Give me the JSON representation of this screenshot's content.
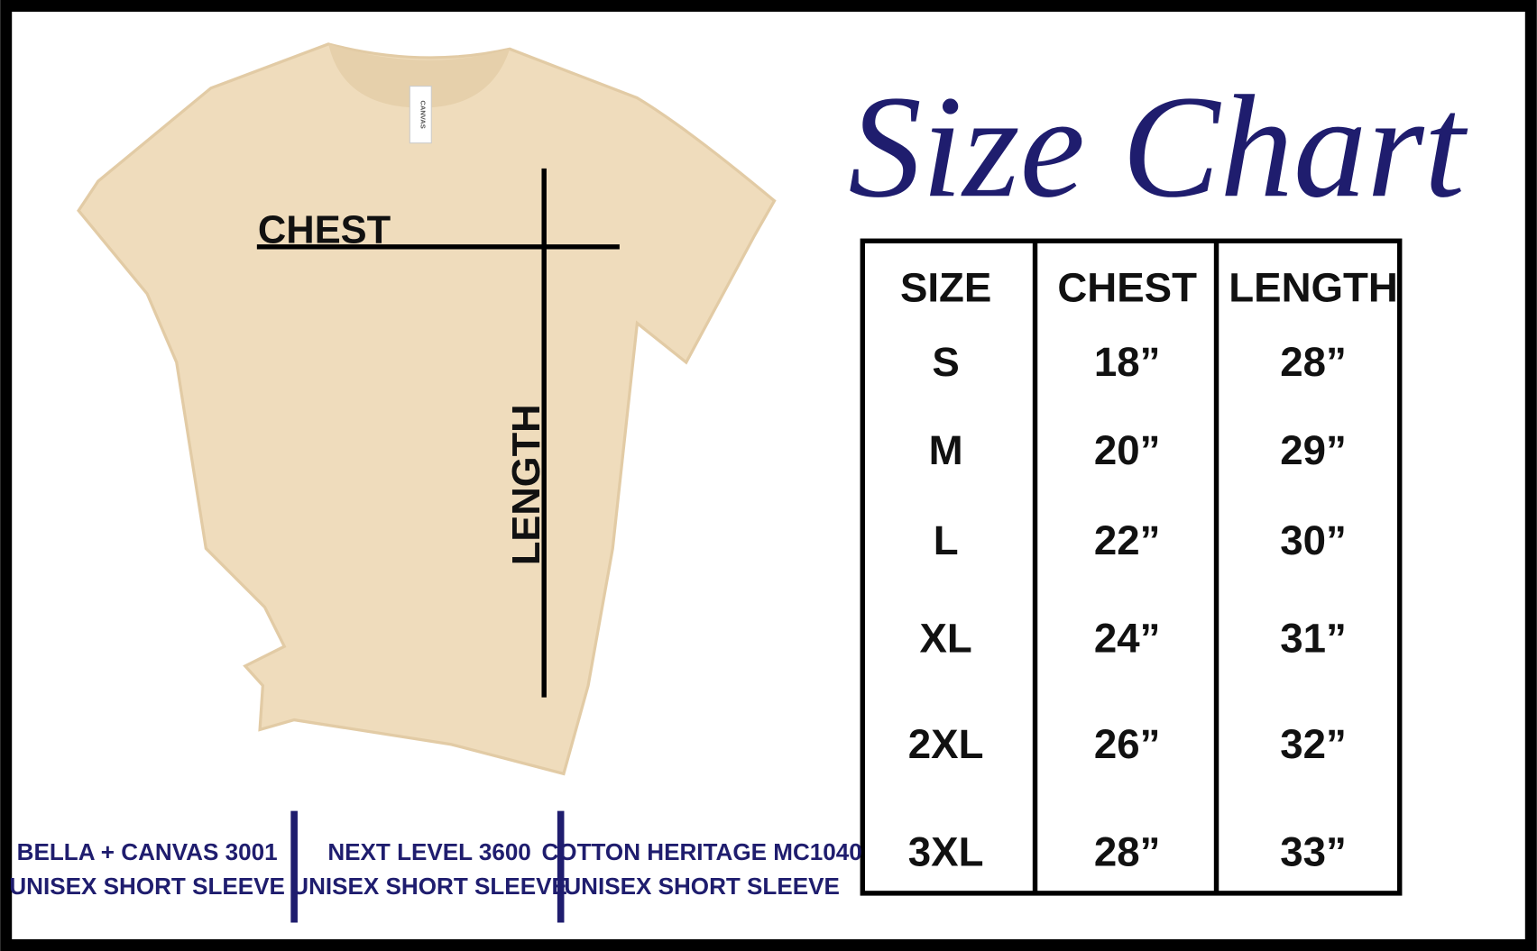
{
  "title": "Size Chart",
  "shirt": {
    "tag": "CANVAS",
    "chest_label": "CHEST",
    "length_label": "LENGTH"
  },
  "table": {
    "headers": [
      "SIZE",
      "CHEST",
      "LENGTH"
    ],
    "rows": [
      [
        "S",
        "18”",
        "28”"
      ],
      [
        "M",
        "20”",
        "29”"
      ],
      [
        "L",
        "22”",
        "30”"
      ],
      [
        "XL",
        "24”",
        "31”"
      ],
      [
        "2XL",
        "26”",
        "32”"
      ],
      [
        "3XL",
        "28”",
        "33”"
      ]
    ]
  },
  "brands": [
    [
      "BELLA + CANVAS 3001",
      "UNISEX SHORT SLEEVE"
    ],
    [
      "NEXT LEVEL 3600",
      "UNISEX SHORT SLEEVE"
    ],
    [
      "COTTON HERITAGE MC1040",
      "UNISEX SHORT SLEEVE"
    ]
  ]
}
